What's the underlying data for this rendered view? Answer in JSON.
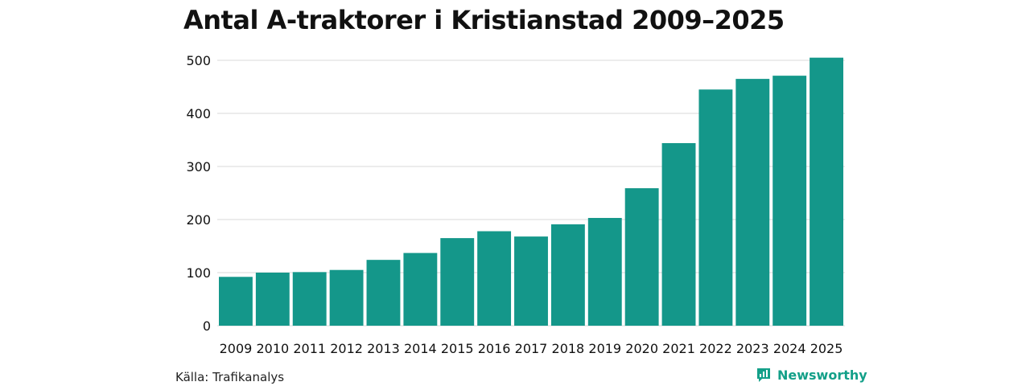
{
  "chart_data": {
    "type": "bar",
    "title": "Antal A-traktorer i Kristianstad 2009–2025",
    "categories": [
      "2009",
      "2010",
      "2011",
      "2012",
      "2013",
      "2014",
      "2015",
      "2016",
      "2017",
      "2018",
      "2019",
      "2020",
      "2021",
      "2022",
      "2023",
      "2024",
      "2025"
    ],
    "values": [
      92,
      100,
      101,
      105,
      124,
      137,
      165,
      178,
      168,
      191,
      203,
      259,
      344,
      445,
      465,
      471,
      505
    ],
    "ylim": [
      0,
      500
    ],
    "yticks": [
      0,
      100,
      200,
      300,
      400,
      500
    ],
    "xlabel": "",
    "ylabel": "",
    "grid": true,
    "bar_color": "#14978a",
    "grid_color": "#d9d9d9"
  },
  "footer": {
    "source": "Källa: Trafikanalys",
    "brand": "Newsworthy",
    "brand_icon": "newsworthy-logo-icon",
    "brand_color": "#14a089"
  }
}
